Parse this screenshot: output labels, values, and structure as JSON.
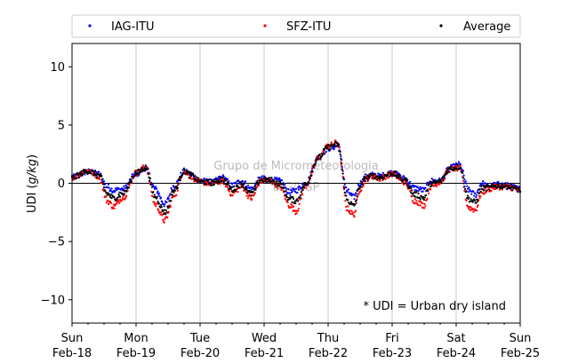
{
  "chart_data": {
    "type": "scatter",
    "ylabel": "UDI (g/kg)",
    "ylim": [
      -12,
      12
    ],
    "yticks": [
      -10,
      -5,
      0,
      5,
      10
    ],
    "xlim_days": [
      0,
      7
    ],
    "x_ticks": [
      {
        "day": "Sun",
        "date": "Feb-18"
      },
      {
        "day": "Mon",
        "date": "Feb-19"
      },
      {
        "day": "Tue",
        "date": "Feb-20"
      },
      {
        "day": "Wed",
        "date": "Feb-21"
      },
      {
        "day": "Thu",
        "date": "Feb-22"
      },
      {
        "day": "Fri",
        "date": "Feb-23"
      },
      {
        "day": "Sat",
        "date": "Feb-24"
      },
      {
        "day": "Sun",
        "date": "Feb-25"
      }
    ],
    "grid": "vertical",
    "zero_line": true,
    "legend_position": "top",
    "annotation": "* UDI = Urban dry island",
    "watermark": [
      "Grupo de Micrometeorologia",
      "IAG/USP"
    ],
    "series": [
      {
        "name": "IAG-ITU",
        "color": "#0000ff",
        "x": [
          0,
          0.25,
          0.42,
          0.55,
          0.65,
          0.8,
          1.0,
          1.15,
          1.3,
          1.45,
          1.6,
          1.75,
          1.85,
          2.0,
          2.2,
          2.35,
          2.5,
          2.65,
          2.8,
          2.95,
          3.1,
          3.25,
          3.4,
          3.5,
          3.65,
          3.85,
          4.0,
          4.15,
          4.3,
          4.4,
          4.5,
          4.6,
          4.7,
          4.8,
          5.0,
          5.2,
          5.35,
          5.5,
          5.6,
          5.75,
          5.9,
          6.05,
          6.2,
          6.3,
          6.4,
          6.5,
          6.65,
          6.8,
          7.0
        ],
        "y": [
          0.5,
          1.0,
          0.8,
          -0.3,
          -0.6,
          -0.5,
          0.8,
          1.3,
          -0.5,
          -1.8,
          -0.2,
          1.0,
          0.8,
          0.2,
          0.1,
          0.5,
          -0.2,
          0.2,
          -0.5,
          0.4,
          0.3,
          0.2,
          -0.8,
          -0.6,
          0.0,
          2.2,
          3.0,
          3.2,
          -0.7,
          -1.2,
          0.0,
          0.6,
          0.7,
          0.6,
          0.9,
          0.4,
          -0.4,
          -0.6,
          0.2,
          0.2,
          1.3,
          1.6,
          -0.6,
          -1.0,
          0.0,
          -0.3,
          -0.1,
          -0.2,
          -0.5
        ]
      },
      {
        "name": "SFZ-ITU",
        "color": "#ff0000",
        "x": [
          0,
          0.25,
          0.42,
          0.55,
          0.65,
          0.8,
          1.0,
          1.15,
          1.3,
          1.45,
          1.6,
          1.75,
          1.85,
          2.0,
          2.2,
          2.35,
          2.5,
          2.65,
          2.8,
          2.95,
          3.1,
          3.25,
          3.4,
          3.5,
          3.65,
          3.85,
          4.0,
          4.15,
          4.3,
          4.4,
          4.5,
          4.6,
          4.7,
          4.8,
          5.0,
          5.2,
          5.35,
          5.5,
          5.6,
          5.75,
          5.9,
          6.05,
          6.2,
          6.3,
          6.4,
          6.5,
          6.65,
          6.8,
          7.0
        ],
        "y": [
          0.5,
          1.1,
          0.6,
          -1.5,
          -2.0,
          -1.2,
          0.9,
          1.4,
          -1.8,
          -3.2,
          -1.0,
          1.1,
          0.6,
          0.1,
          0.0,
          0.2,
          -0.9,
          -0.3,
          -1.3,
          0.2,
          0.2,
          -0.3,
          -1.9,
          -2.4,
          -0.2,
          2.2,
          3.2,
          3.5,
          -2.2,
          -2.7,
          -0.5,
          0.4,
          0.6,
          0.4,
          0.8,
          0.1,
          -1.5,
          -1.9,
          -0.3,
          0.1,
          1.2,
          1.3,
          -2.1,
          -2.3,
          -0.8,
          -0.5,
          -0.3,
          -0.3,
          -0.6
        ]
      },
      {
        "name": "Average",
        "color": "#000000",
        "x": [
          0,
          0.25,
          0.42,
          0.55,
          0.65,
          0.8,
          1.0,
          1.15,
          1.3,
          1.45,
          1.6,
          1.75,
          1.85,
          2.0,
          2.2,
          2.35,
          2.5,
          2.65,
          2.8,
          2.95,
          3.1,
          3.25,
          3.4,
          3.5,
          3.65,
          3.85,
          4.0,
          4.15,
          4.3,
          4.4,
          4.5,
          4.6,
          4.7,
          4.8,
          5.0,
          5.2,
          5.35,
          5.5,
          5.6,
          5.75,
          5.9,
          6.05,
          6.2,
          6.3,
          6.4,
          6.5,
          6.65,
          6.8,
          7.0
        ],
        "y": [
          0.5,
          1.05,
          0.7,
          -0.9,
          -1.3,
          -0.85,
          0.85,
          1.35,
          -1.15,
          -2.5,
          -0.6,
          1.05,
          0.7,
          0.15,
          0.05,
          0.35,
          -0.55,
          -0.05,
          -0.9,
          0.3,
          0.25,
          -0.05,
          -1.35,
          -1.5,
          -0.1,
          2.2,
          3.1,
          3.35,
          -1.45,
          -1.95,
          -0.25,
          0.5,
          0.65,
          0.5,
          0.85,
          0.25,
          -0.95,
          -1.25,
          -0.05,
          0.15,
          1.25,
          1.45,
          -1.35,
          -1.65,
          -0.4,
          -0.4,
          -0.2,
          -0.25,
          -0.55
        ]
      }
    ]
  }
}
